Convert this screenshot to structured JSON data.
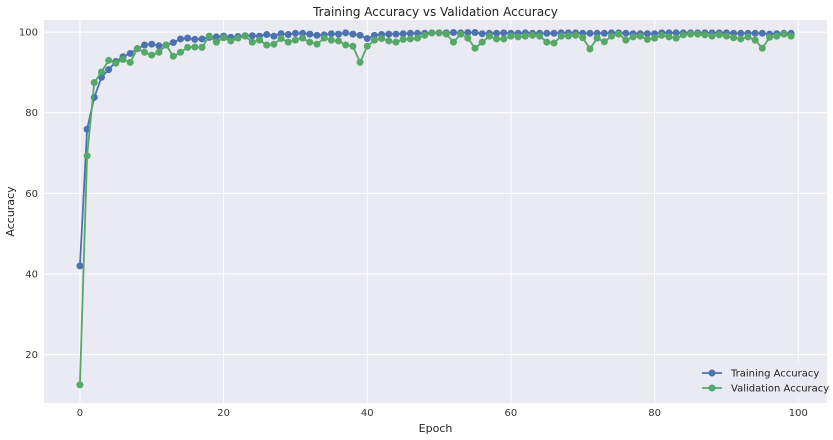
{
  "chart_data": {
    "type": "line",
    "title": "Training Accuracy vs Validation Accuracy",
    "xlabel": "Epoch",
    "ylabel": "Accuracy",
    "xlim": [
      -5,
      104
    ],
    "ylim": [
      8,
      103
    ],
    "xticks": [
      0,
      20,
      40,
      60,
      80,
      100
    ],
    "yticks": [
      20,
      40,
      60,
      80,
      100
    ],
    "grid": true,
    "legend_position": "bottom-right",
    "x": [
      0,
      1,
      2,
      3,
      4,
      5,
      6,
      7,
      8,
      9,
      10,
      11,
      12,
      13,
      14,
      15,
      16,
      17,
      18,
      19,
      20,
      21,
      22,
      23,
      24,
      25,
      26,
      27,
      28,
      29,
      30,
      31,
      32,
      33,
      34,
      35,
      36,
      37,
      38,
      39,
      40,
      41,
      42,
      43,
      44,
      45,
      46,
      47,
      48,
      49,
      50,
      51,
      52,
      53,
      54,
      55,
      56,
      57,
      58,
      59,
      60,
      61,
      62,
      63,
      64,
      65,
      66,
      67,
      68,
      69,
      70,
      71,
      72,
      73,
      74,
      75,
      76,
      77,
      78,
      79,
      80,
      81,
      82,
      83,
      84,
      85,
      86,
      87,
      88,
      89,
      90,
      91,
      92,
      93,
      94,
      95,
      96,
      97,
      98,
      99
    ],
    "series": [
      {
        "name": "Training Accuracy",
        "color": "#4c72b0",
        "values": [
          42.0,
          75.9,
          83.8,
          88.8,
          90.7,
          92.7,
          93.9,
          94.7,
          95.9,
          96.8,
          97.0,
          96.6,
          96.8,
          97.4,
          98.3,
          98.5,
          98.2,
          98.3,
          98.7,
          98.8,
          99.0,
          98.7,
          98.9,
          99.1,
          99.1,
          99.0,
          99.4,
          99.0,
          99.6,
          99.4,
          99.7,
          99.7,
          99.5,
          99.2,
          99.3,
          99.6,
          99.5,
          99.8,
          99.5,
          99.2,
          98.4,
          99.2,
          99.4,
          99.5,
          99.5,
          99.6,
          99.7,
          99.7,
          99.7,
          99.8,
          99.8,
          99.8,
          99.9,
          99.8,
          99.9,
          99.9,
          99.6,
          99.7,
          99.7,
          99.8,
          99.7,
          99.7,
          99.8,
          99.7,
          99.7,
          99.7,
          99.7,
          99.8,
          99.8,
          99.8,
          99.7,
          99.7,
          99.7,
          99.7,
          99.8,
          99.8,
          99.7,
          99.6,
          99.6,
          99.6,
          99.6,
          99.8,
          99.8,
          99.8,
          99.8,
          99.8,
          99.8,
          99.8,
          99.8,
          99.8,
          99.8,
          99.7,
          99.7,
          99.7,
          99.7,
          99.7,
          99.5,
          99.6,
          99.7,
          99.7
        ]
      },
      {
        "name": "Validation Accuracy",
        "color": "#55a868",
        "values": [
          12.5,
          69.3,
          87.5,
          90.1,
          93.0,
          92.3,
          93.2,
          92.5,
          95.9,
          95.0,
          94.3,
          95.0,
          96.8,
          94.0,
          95.0,
          96.2,
          96.3,
          96.2,
          99.0,
          97.5,
          98.6,
          97.8,
          98.5,
          99.0,
          97.5,
          98.0,
          96.8,
          97.0,
          98.4,
          97.5,
          98.0,
          98.5,
          97.5,
          97.0,
          98.5,
          98.0,
          97.8,
          96.8,
          96.5,
          92.5,
          96.5,
          98.0,
          98.4,
          97.8,
          97.5,
          98.2,
          98.3,
          98.5,
          99.2,
          99.8,
          99.8,
          99.5,
          97.5,
          99.5,
          98.5,
          96.0,
          97.5,
          99.0,
          98.3,
          98.3,
          99.0,
          98.8,
          99.0,
          99.2,
          99.0,
          97.5,
          97.3,
          99.0,
          99.0,
          99.2,
          98.6,
          95.8,
          98.5,
          97.6,
          99.0,
          99.5,
          98.0,
          98.8,
          99.0,
          98.2,
          98.5,
          99.2,
          98.8,
          98.5,
          99.3,
          99.5,
          99.5,
          99.3,
          99.0,
          99.3,
          99.0,
          98.6,
          98.3,
          98.8,
          98.0,
          96.0,
          98.7,
          99.0,
          99.5,
          99.0
        ]
      }
    ]
  }
}
